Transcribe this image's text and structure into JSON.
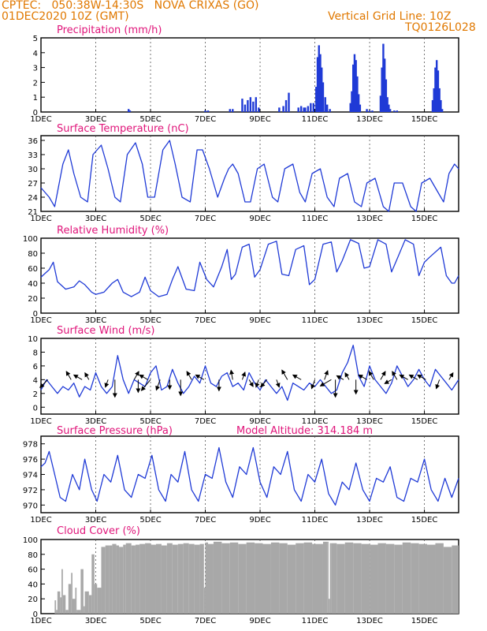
{
  "header": {
    "left_line1": "CPTEC:   050:38W-14:30S   NOVA CRIXAS (GO)",
    "left_line2": "01DEC2020 10Z (GMT)",
    "right_line1": "Vertical Grid Line: 10Z",
    "right_line2": "TQ0126L028"
  },
  "colors": {
    "header": "#e07800",
    "title": "#e0157a",
    "line": "#1f3ad6",
    "bar": "#1f3ad6",
    "cloud": "#a8a8a8",
    "arrow": "#000000"
  },
  "x_axis": {
    "labels": [
      "1DEC",
      "3DEC",
      "5DEC",
      "7DEC",
      "9DEC",
      "11DEC",
      "13DEC",
      "15DEC"
    ],
    "label_days": [
      0,
      2,
      4,
      6,
      8,
      10,
      12,
      14
    ],
    "range_days": [
      0,
      15.25
    ]
  },
  "chart_data": [
    {
      "id": "precip",
      "type": "bar",
      "title": "Precipitation (mm/h)",
      "yticks": [
        0,
        1,
        2,
        3,
        4,
        5
      ],
      "ylim": [
        0,
        5
      ],
      "x_unit": "days since 01DEC2020 10Z",
      "x": [
        3.2,
        3.25,
        6.0,
        6.1,
        6.9,
        7.0,
        7.35,
        7.45,
        7.55,
        7.65,
        7.75,
        7.85,
        7.95,
        8.85,
        8.95,
        9.05,
        8.7,
        9.4,
        9.5,
        9.6,
        9.75,
        9.85,
        9.95,
        9.65,
        10.05,
        10.1,
        10.15,
        10.2,
        10.25,
        10.3,
        10.38,
        10.45,
        10.55,
        11.3,
        11.35,
        11.4,
        11.45,
        11.5,
        11.55,
        11.6,
        11.65,
        11.9,
        12.0,
        12.1,
        12.4,
        12.45,
        12.5,
        12.55,
        12.6,
        12.65,
        12.7,
        12.75,
        12.9,
        13.0,
        14.3,
        14.35,
        14.4,
        14.45,
        14.5,
        14.55,
        14.6,
        14.65
      ],
      "values": [
        0.2,
        0.1,
        0.1,
        0.1,
        0.2,
        0.2,
        0.9,
        0.5,
        0.8,
        1.0,
        0.7,
        1.0,
        0.3,
        0.4,
        0.8,
        1.3,
        0.3,
        0.3,
        0.4,
        0.3,
        0.4,
        0.6,
        0.6,
        0.3,
        1.7,
        3.7,
        4.5,
        3.9,
        3.0,
        2.0,
        1.0,
        0.5,
        0.2,
        0.6,
        1.4,
        3.2,
        3.9,
        3.5,
        2.4,
        1.2,
        0.5,
        0.2,
        0.1,
        0.1,
        1.1,
        3.0,
        4.6,
        3.6,
        2.2,
        1.0,
        0.5,
        0.2,
        0.1,
        0.1,
        0.8,
        1.6,
        3.0,
        3.5,
        2.8,
        1.6,
        0.8,
        0.2
      ]
    },
    {
      "id": "temp",
      "type": "line",
      "title": "Surface Temperature (nC)",
      "yticks": [
        21,
        24,
        27,
        30,
        33,
        36
      ],
      "ylim": [
        21,
        37
      ],
      "x": [
        0,
        0.3,
        0.5,
        0.8,
        1.0,
        1.2,
        1.45,
        1.7,
        1.9,
        2.2,
        2.45,
        2.7,
        2.9,
        3.15,
        3.45,
        3.7,
        3.9,
        4.15,
        4.45,
        4.7,
        4.9,
        5.15,
        5.45,
        5.7,
        5.9,
        6.15,
        6.45,
        6.7,
        6.85,
        7.0,
        7.2,
        7.45,
        7.65,
        7.9,
        8.15,
        8.45,
        8.65,
        8.9,
        9.2,
        9.45,
        9.65,
        9.9,
        10.2,
        10.45,
        10.7,
        10.9,
        11.2,
        11.45,
        11.7,
        11.9,
        12.2,
        12.5,
        12.7,
        12.9,
        13.2,
        13.5,
        13.7,
        13.9,
        14.2,
        14.5,
        14.7,
        14.9,
        15.1,
        15.25
      ],
      "values": [
        26,
        24,
        22,
        31,
        34,
        29,
        24,
        23,
        33,
        35,
        30,
        24,
        23,
        33,
        35.5,
        31,
        24,
        24,
        34,
        36,
        31,
        24,
        23,
        34,
        34,
        30,
        24,
        28,
        30,
        31,
        29,
        23,
        23,
        30,
        31,
        24,
        23,
        30,
        31,
        25,
        23,
        29,
        30,
        24,
        22,
        28,
        29,
        23,
        22,
        27,
        28,
        22,
        21,
        27,
        27,
        22,
        21,
        27,
        28,
        25,
        23,
        29,
        31,
        30
      ]
    },
    {
      "id": "rh",
      "type": "line",
      "title": "Relative Humidity (%)",
      "yticks": [
        0,
        20,
        40,
        60,
        80,
        100
      ],
      "ylim": [
        0,
        100
      ],
      "x": [
        0,
        0.3,
        0.45,
        0.6,
        0.9,
        1.2,
        1.4,
        1.6,
        1.85,
        2.0,
        2.3,
        2.6,
        2.8,
        3.0,
        3.3,
        3.6,
        3.8,
        4.0,
        4.3,
        4.6,
        4.8,
        5.0,
        5.3,
        5.6,
        5.8,
        6.05,
        6.3,
        6.6,
        6.8,
        6.95,
        7.1,
        7.35,
        7.6,
        7.8,
        8.0,
        8.3,
        8.6,
        8.8,
        9.05,
        9.3,
        9.6,
        9.8,
        10.0,
        10.3,
        10.6,
        10.8,
        11.0,
        11.3,
        11.6,
        11.8,
        12.0,
        12.3,
        12.6,
        12.8,
        13.0,
        13.3,
        13.6,
        13.8,
        14.0,
        14.2,
        14.6,
        14.8,
        15.0,
        15.1,
        15.25
      ],
      "values": [
        48,
        58,
        68,
        42,
        32,
        35,
        43,
        38,
        28,
        25,
        28,
        40,
        45,
        28,
        22,
        28,
        48,
        30,
        22,
        25,
        45,
        62,
        32,
        30,
        68,
        45,
        35,
        62,
        85,
        45,
        52,
        88,
        92,
        48,
        58,
        92,
        96,
        52,
        50,
        85,
        90,
        38,
        45,
        92,
        95,
        55,
        70,
        98,
        93,
        60,
        62,
        98,
        92,
        55,
        72,
        98,
        92,
        50,
        68,
        75,
        88,
        50,
        40,
        40,
        50
      ]
    },
    {
      "id": "wind",
      "type": "line",
      "title": "Surface Wind (m/s)",
      "yticks": [
        0,
        2,
        4,
        6,
        8,
        10
      ],
      "ylim": [
        -1,
        10
      ],
      "x": [
        0,
        0.2,
        0.4,
        0.6,
        0.8,
        1.0,
        1.2,
        1.4,
        1.6,
        1.8,
        2.0,
        2.2,
        2.4,
        2.6,
        2.8,
        3.0,
        3.2,
        3.4,
        3.6,
        3.8,
        4.0,
        4.2,
        4.4,
        4.6,
        4.8,
        5.0,
        5.2,
        5.4,
        5.6,
        5.8,
        6.0,
        6.2,
        6.4,
        6.6,
        6.8,
        7.0,
        7.2,
        7.4,
        7.6,
        7.8,
        8.0,
        8.2,
        8.4,
        8.6,
        8.8,
        9.0,
        9.2,
        9.4,
        9.6,
        9.8,
        10.0,
        10.2,
        10.4,
        10.6,
        10.8,
        11.0,
        11.2,
        11.4,
        11.6,
        11.8,
        12.0,
        12.2,
        12.4,
        12.6,
        12.8,
        13.0,
        13.2,
        13.4,
        13.6,
        13.8,
        14.0,
        14.2,
        14.4,
        14.6,
        14.8,
        15.0,
        15.25
      ],
      "values": [
        2.5,
        4,
        3,
        2,
        3,
        2.5,
        3.5,
        1.5,
        3,
        2.5,
        5,
        3,
        2,
        3,
        7.5,
        4,
        2,
        4,
        3.5,
        3,
        5,
        6,
        2.5,
        3,
        5.5,
        3.5,
        2,
        3,
        4.5,
        3.5,
        6,
        3.5,
        3,
        4.5,
        5,
        3,
        3.5,
        2.5,
        5,
        3.5,
        2.5,
        4,
        3,
        2,
        3,
        1,
        3.5,
        3,
        2.5,
        3.5,
        3,
        4,
        3,
        2,
        2.5,
        5,
        6.5,
        9,
        4.5,
        3,
        6,
        4,
        3,
        2,
        3.5,
        6,
        4.5,
        3,
        4,
        5.5,
        4,
        3,
        5.5,
        4.5,
        3.5,
        2.5,
        4
      ]
    },
    {
      "id": "pres",
      "type": "line",
      "title": "Surface Pressure (hPa)",
      "extra_label": "Model Altitude: 314.184 m",
      "yticks": [
        970,
        972,
        974,
        976,
        978
      ],
      "ylim": [
        969,
        979
      ],
      "x": [
        0,
        0.15,
        0.3,
        0.5,
        0.7,
        0.9,
        1.15,
        1.4,
        1.6,
        1.85,
        2.05,
        2.3,
        2.55,
        2.8,
        3.05,
        3.3,
        3.55,
        3.8,
        4.05,
        4.3,
        4.55,
        4.75,
        5.0,
        5.25,
        5.5,
        5.75,
        6.0,
        6.25,
        6.5,
        6.75,
        7.0,
        7.25,
        7.5,
        7.75,
        8.0,
        8.25,
        8.5,
        8.75,
        9.0,
        9.25,
        9.5,
        9.75,
        10.0,
        10.25,
        10.5,
        10.75,
        11.0,
        11.25,
        11.5,
        11.75,
        12.0,
        12.25,
        12.5,
        12.75,
        13.0,
        13.25,
        13.5,
        13.75,
        14.0,
        14.25,
        14.5,
        14.75,
        15.0,
        15.25
      ],
      "values": [
        975,
        975.5,
        977,
        974,
        971,
        970.5,
        974,
        972,
        976,
        972,
        970.5,
        974,
        973,
        976.5,
        972,
        971,
        974,
        973.5,
        976.5,
        972,
        970.5,
        974,
        973,
        977,
        972,
        970.5,
        974,
        973.5,
        977.5,
        973,
        971,
        975,
        974,
        977.5,
        973,
        971,
        975,
        974,
        977,
        972,
        970.5,
        974,
        973,
        976,
        971.5,
        970,
        973,
        972,
        975.5,
        972,
        970.5,
        973.5,
        973,
        975,
        971,
        970.5,
        973.5,
        973,
        976,
        972,
        970.5,
        973.5,
        971,
        973.5
      ]
    },
    {
      "id": "cloud",
      "type": "area",
      "title": "Cloud Cover (%)",
      "yticks": [
        0,
        20,
        40,
        60,
        80,
        100
      ],
      "ylim": [
        0,
        100
      ],
      "x": [
        0,
        0.3,
        0.5,
        0.55,
        0.6,
        0.7,
        0.75,
        0.8,
        0.9,
        1.0,
        1.1,
        1.15,
        1.25,
        1.3,
        1.45,
        1.55,
        1.6,
        1.75,
        1.85,
        1.95,
        2.05,
        2.2,
        2.35,
        2.5,
        2.6,
        2.75,
        2.85,
        3.0,
        3.1,
        3.3,
        3.45,
        3.6,
        3.8,
        4.0,
        4.2,
        4.4,
        4.6,
        4.8,
        5.0,
        5.2,
        5.4,
        5.6,
        5.8,
        5.95,
        6.0,
        6.1,
        6.3,
        6.6,
        6.9,
        7.2,
        7.5,
        7.8,
        8.1,
        8.4,
        8.7,
        9.0,
        9.3,
        9.6,
        9.9,
        10.3,
        10.45,
        10.5,
        10.55,
        10.6,
        10.8,
        11.1,
        11.4,
        11.7,
        12.0,
        12.3,
        12.6,
        12.9,
        13.2,
        13.5,
        13.8,
        14.1,
        14.4,
        14.7,
        15.0,
        15.25
      ],
      "values": [
        0,
        0,
        18,
        5,
        30,
        22,
        60,
        25,
        5,
        40,
        55,
        20,
        35,
        5,
        60,
        10,
        30,
        25,
        80,
        40,
        35,
        90,
        92,
        92,
        94,
        92,
        90,
        93,
        95,
        92,
        93,
        94,
        95,
        93,
        94,
        92,
        95,
        93,
        94,
        95,
        94,
        93,
        94,
        35,
        96,
        94,
        97,
        95,
        96,
        94,
        96,
        95,
        94,
        96,
        95,
        93,
        95,
        96,
        94,
        97,
        97,
        20,
        95,
        95,
        94,
        96,
        95,
        94,
        93,
        95,
        94,
        93,
        96,
        95,
        94,
        93,
        95,
        90,
        92,
        88
      ]
    }
  ],
  "wind_arrows": [
    {
      "day": 0.25,
      "deg": 225,
      "len": 14
    },
    {
      "day": 1.1,
      "deg": 330,
      "len": 12
    },
    {
      "day": 1.5,
      "deg": 300,
      "len": 12
    },
    {
      "day": 1.75,
      "deg": 330,
      "len": 10
    },
    {
      "day": 2.45,
      "deg": 200,
      "len": 10
    },
    {
      "day": 2.7,
      "deg": 180,
      "len": 22
    },
    {
      "day": 3.4,
      "deg": 30,
      "len": 12
    },
    {
      "day": 3.55,
      "deg": 180,
      "len": 16
    },
    {
      "day": 3.9,
      "deg": 300,
      "len": 12
    },
    {
      "day": 4.0,
      "deg": 220,
      "len": 18
    },
    {
      "day": 4.35,
      "deg": 200,
      "len": 14
    },
    {
      "day": 4.7,
      "deg": 180,
      "len": 12
    },
    {
      "day": 5.1,
      "deg": 180,
      "len": 20
    },
    {
      "day": 5.5,
      "deg": 330,
      "len": 12
    },
    {
      "day": 5.95,
      "deg": 300,
      "len": 12
    },
    {
      "day": 6.5,
      "deg": 180,
      "len": 14
    },
    {
      "day": 7.0,
      "deg": 350,
      "len": 12
    },
    {
      "day": 7.35,
      "deg": 20,
      "len": 10
    },
    {
      "day": 7.6,
      "deg": 150,
      "len": 10
    },
    {
      "day": 7.95,
      "deg": 200,
      "len": 10
    },
    {
      "day": 8.25,
      "deg": 220,
      "len": 12
    },
    {
      "day": 8.6,
      "deg": 160,
      "len": 10
    },
    {
      "day": 9.0,
      "deg": 330,
      "len": 14
    },
    {
      "day": 9.5,
      "deg": 300,
      "len": 12
    },
    {
      "day": 10.0,
      "deg": 200,
      "len": 12
    },
    {
      "day": 10.35,
      "deg": 20,
      "len": 12
    },
    {
      "day": 10.6,
      "deg": 240,
      "len": 16
    },
    {
      "day": 10.75,
      "deg": 180,
      "len": 22
    },
    {
      "day": 11.05,
      "deg": 300,
      "len": 10
    },
    {
      "day": 11.25,
      "deg": 330,
      "len": 10
    },
    {
      "day": 11.5,
      "deg": 180,
      "len": 18
    },
    {
      "day": 11.9,
      "deg": 300,
      "len": 12
    },
    {
      "day": 12.15,
      "deg": 330,
      "len": 12
    },
    {
      "day": 12.4,
      "deg": 30,
      "len": 12
    },
    {
      "day": 12.8,
      "deg": 240,
      "len": 10
    },
    {
      "day": 13.0,
      "deg": 330,
      "len": 12
    },
    {
      "day": 13.4,
      "deg": 300,
      "len": 12
    },
    {
      "day": 13.75,
      "deg": 300,
      "len": 12
    },
    {
      "day": 14.05,
      "deg": 300,
      "len": 12
    },
    {
      "day": 14.55,
      "deg": 200,
      "len": 12
    },
    {
      "day": 14.9,
      "deg": 30,
      "len": 10
    }
  ]
}
